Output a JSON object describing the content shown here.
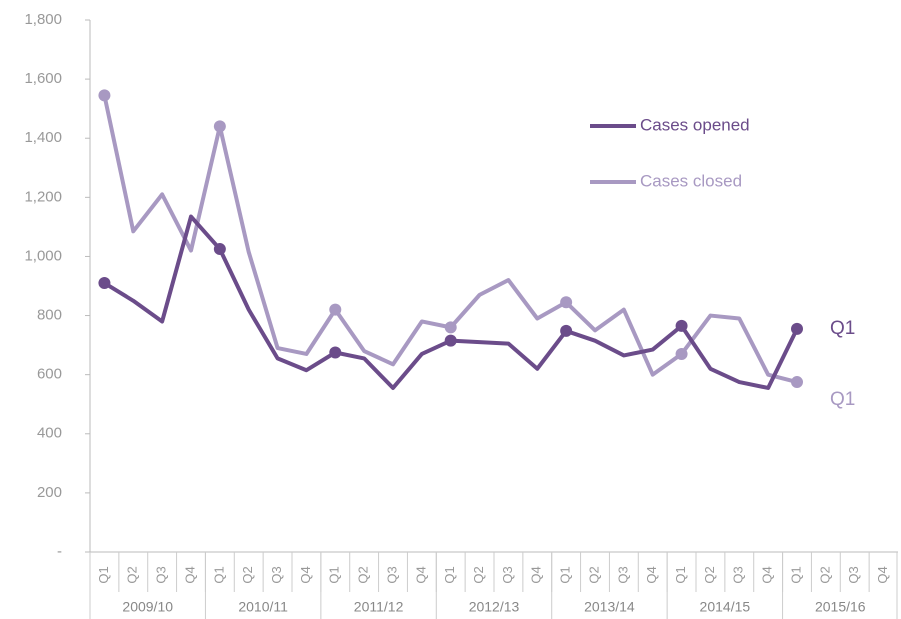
{
  "chart_data": {
    "type": "line",
    "categories": [
      "Q1",
      "Q2",
      "Q3",
      "Q4",
      "Q1",
      "Q2",
      "Q3",
      "Q4",
      "Q1",
      "Q2",
      "Q3",
      "Q4",
      "Q1",
      "Q2",
      "Q3",
      "Q4",
      "Q1",
      "Q2",
      "Q3",
      "Q4",
      "Q1",
      "Q2",
      "Q3",
      "Q4",
      "Q1",
      "Q2",
      "Q3",
      "Q4"
    ],
    "year_groups": [
      "2009/10",
      "2010/11",
      "2011/12",
      "2012/13",
      "2013/14",
      "2014/15",
      "2015/16"
    ],
    "series": [
      {
        "name": "Cases opened",
        "color": "#6b4c8a",
        "values": [
          910,
          850,
          780,
          1135,
          1025,
          820,
          655,
          615,
          675,
          655,
          555,
          670,
          715,
          710,
          705,
          620,
          748,
          715,
          665,
          685,
          765,
          620,
          575,
          555,
          755,
          null,
          null,
          null
        ]
      },
      {
        "name": "Cases closed",
        "color": "#a899c2",
        "values": [
          1545,
          1085,
          1210,
          1020,
          1440,
          1015,
          690,
          670,
          820,
          680,
          635,
          780,
          760,
          870,
          920,
          790,
          845,
          750,
          820,
          600,
          670,
          800,
          790,
          600,
          575,
          null,
          null,
          null
        ]
      }
    ],
    "annotations": [
      "Q1",
      "Q1"
    ],
    "ylim": [
      0,
      1800
    ],
    "yticks": [
      {
        "value": 0,
        "label": "-"
      },
      200,
      400,
      600,
      800,
      {
        "value": 1000,
        "label": "1,000"
      },
      {
        "value": 1200,
        "label": "1,200"
      },
      {
        "value": 1400,
        "label": "1,400"
      },
      {
        "value": 1600,
        "label": "1,600"
      },
      {
        "value": 1800,
        "label": "1,800"
      }
    ],
    "grid": false,
    "legend": "upper right"
  }
}
